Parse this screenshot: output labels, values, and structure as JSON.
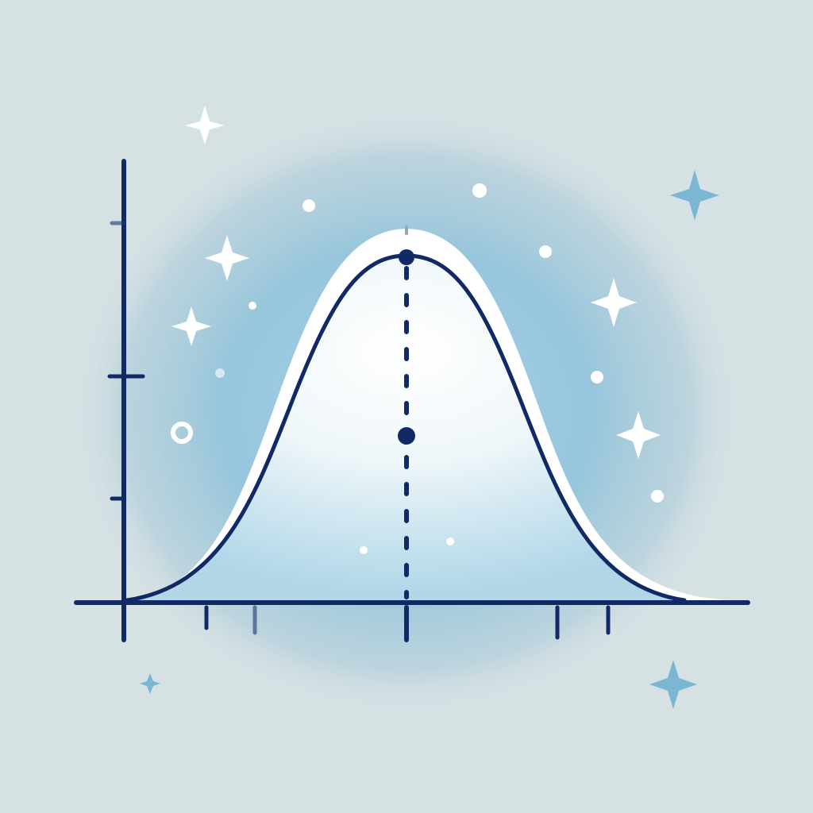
{
  "illustration": {
    "subject": "bell-curve-icon",
    "colors": {
      "background": "#d6e1e4",
      "glow": "#8fc0d8",
      "ink": "#112a66",
      "highlight": "#ffffff",
      "accent_sparkle": "#7bb6d2"
    },
    "icons": [
      "sparkle-icon",
      "dot-icon",
      "ring-icon"
    ]
  }
}
